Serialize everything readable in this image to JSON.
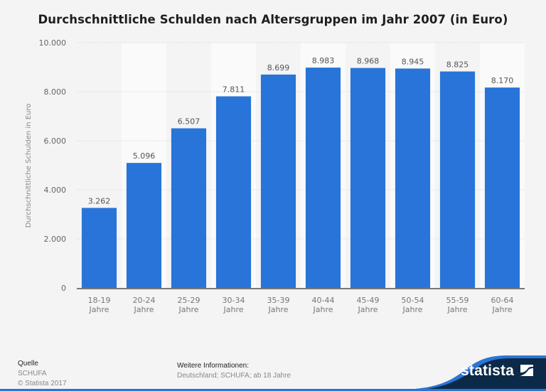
{
  "chart_data": {
    "type": "bar",
    "title": "Durchschnittliche Schulden nach Altersgruppen im Jahr 2007 (in Euro)",
    "xlabel": "",
    "ylabel": "Durchschnittliche Schulden in Euro",
    "ylim": [
      0,
      10000
    ],
    "yticks": [
      0,
      2000,
      4000,
      6000,
      8000,
      10000
    ],
    "ytick_labels": [
      "0",
      "2.000",
      "4.000",
      "6.000",
      "8.000",
      "10.000"
    ],
    "grid": true,
    "categories": [
      [
        "18-19",
        "Jahre"
      ],
      [
        "20-24",
        "Jahre"
      ],
      [
        "25-29",
        "Jahre"
      ],
      [
        "30-34",
        "Jahre"
      ],
      [
        "35-39",
        "Jahre"
      ],
      [
        "40-44",
        "Jahre"
      ],
      [
        "45-49",
        "Jahre"
      ],
      [
        "50-54",
        "Jahre"
      ],
      [
        "55-59",
        "Jahre"
      ],
      [
        "60-64",
        "Jahre"
      ]
    ],
    "values": [
      3262,
      5096,
      6507,
      7811,
      8699,
      8983,
      8968,
      8945,
      8825,
      8170
    ],
    "value_labels": [
      "3.262",
      "5.096",
      "6.507",
      "7.811",
      "8.699",
      "8.983",
      "8.968",
      "8.945",
      "8.825",
      "8.170"
    ],
    "bar_color": "#2874d9"
  },
  "footer": {
    "source_label": "Quelle",
    "source_value": "SCHUFA",
    "copyright": "© Statista 2017",
    "info_label": "Weitere Informationen:",
    "info_value": "Deutschland; SCHUFA; ab 18 Jahre"
  },
  "brand": {
    "name": "statista",
    "dark_color": "#0c2a47",
    "accent_color": "#2a75d8"
  }
}
